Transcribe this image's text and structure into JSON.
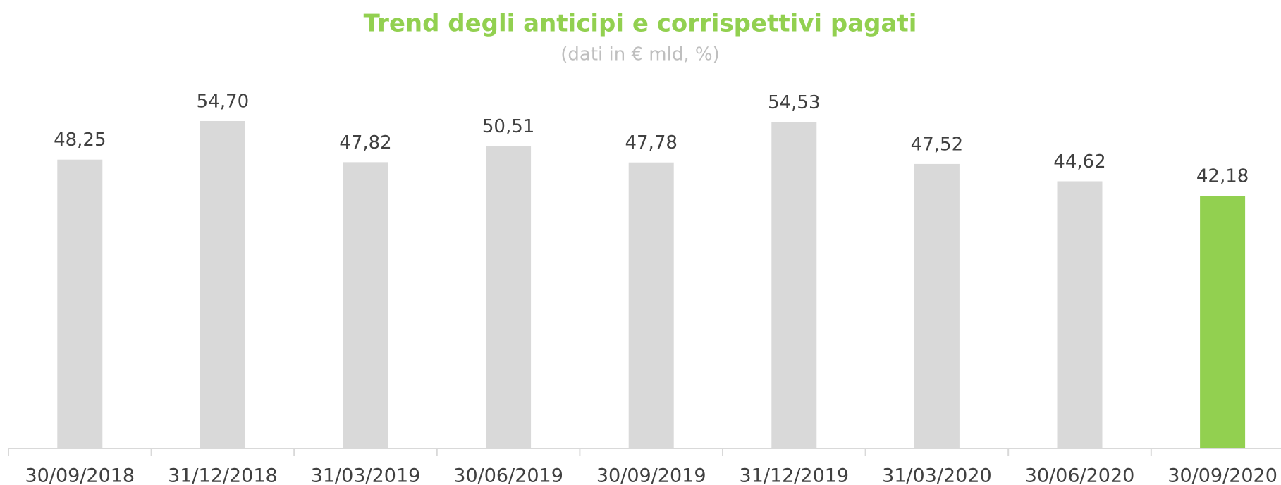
{
  "chart_data": {
    "type": "bar",
    "title": "Trend degli anticipi e corrispettivi pagati",
    "subtitle": "(dati in € mld, %)",
    "categories": [
      "30/09/2018",
      "31/12/2018",
      "31/03/2019",
      "30/06/2019",
      "30/09/2019",
      "31/12/2019",
      "31/03/2020",
      "30/06/2020",
      "30/09/2020"
    ],
    "values": [
      48.25,
      54.7,
      47.82,
      50.51,
      47.78,
      54.53,
      47.52,
      44.62,
      42.18
    ],
    "value_labels": [
      "48,25",
      "54,70",
      "47,82",
      "50,51",
      "47,78",
      "54,53",
      "47,52",
      "44,62",
      "42,18"
    ],
    "colors": [
      "#d9d9d9",
      "#d9d9d9",
      "#d9d9d9",
      "#d9d9d9",
      "#d9d9d9",
      "#d9d9d9",
      "#d9d9d9",
      "#d9d9d9",
      "#92d050"
    ]
  }
}
